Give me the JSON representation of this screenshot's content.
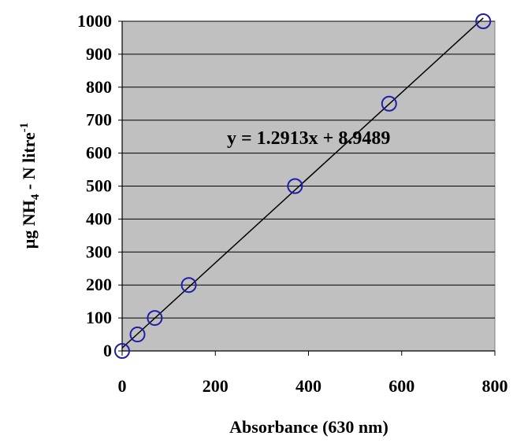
{
  "chart_data": {
    "type": "scatter",
    "xlabel": "Absorbance (630 nm)",
    "ylabel": {
      "prefix": "µg NH",
      "sub": "4",
      "mid": " - N litre",
      "sup": "-1"
    },
    "xlim": [
      0,
      800
    ],
    "ylim": [
      0,
      1000
    ],
    "x_ticks": [
      0,
      200,
      400,
      600,
      800
    ],
    "y_ticks": [
      0,
      100,
      200,
      300,
      400,
      500,
      600,
      700,
      800,
      900,
      1000
    ],
    "grid": "horizontal",
    "plot_background": "#c0c0c0",
    "marker_color": "#1f1fa8",
    "line_color": "#000000",
    "series": [
      {
        "x": [
          0,
          33,
          70,
          143,
          371,
          573,
          775
        ],
        "y": [
          0,
          50,
          100,
          200,
          500,
          750,
          1000
        ]
      }
    ],
    "trendline": {
      "slope": 1.2913,
      "intercept": 8.9489,
      "label": "y = 1.2913x + 8.9489"
    }
  }
}
